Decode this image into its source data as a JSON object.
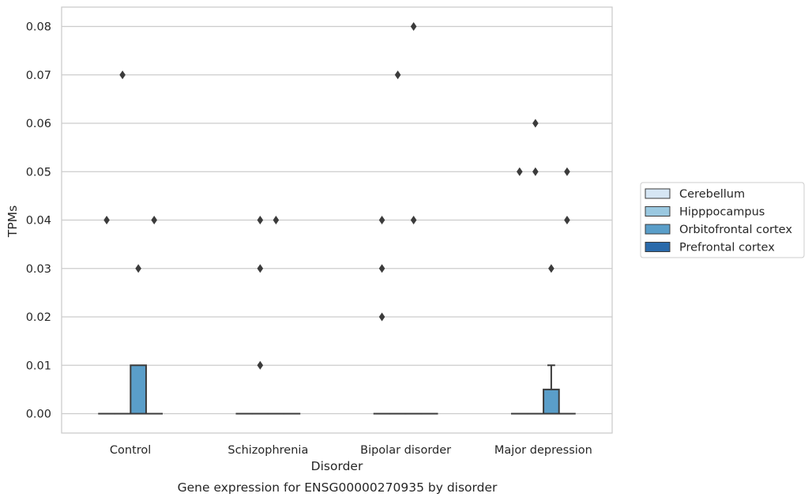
{
  "chart_data": {
    "type": "box",
    "xlabel": "Disorder",
    "ylabel": "TPMs",
    "caption": "Gene expression for ENSG00000270935 by disorder",
    "categories": [
      "Control",
      "Schizophrenia",
      "Bipolar disorder",
      "Major depression"
    ],
    "y_ticks": [
      "0.00",
      "0.01",
      "0.02",
      "0.03",
      "0.04",
      "0.05",
      "0.06",
      "0.07",
      "0.08"
    ],
    "ylim": [
      -0.004,
      0.084
    ],
    "grid": true,
    "legend_position": "right",
    "series": [
      {
        "name": "Cerebellum",
        "color": "#d6e6f4",
        "boxes": [
          {
            "q1": 0,
            "median": 0,
            "q3": 0,
            "whisker_low": 0,
            "whisker_high": 0,
            "outliers": [
              0.04
            ]
          },
          {
            "q1": 0,
            "median": 0,
            "q3": 0,
            "whisker_low": 0,
            "whisker_high": 0,
            "outliers": []
          },
          {
            "q1": 0,
            "median": 0,
            "q3": 0,
            "whisker_low": 0,
            "whisker_high": 0,
            "outliers": [
              0.04,
              0.03,
              0.02
            ]
          },
          {
            "q1": 0,
            "median": 0,
            "q3": 0,
            "whisker_low": 0,
            "whisker_high": 0,
            "outliers": [
              0.05
            ]
          }
        ]
      },
      {
        "name": "Hipppocampus",
        "color": "#9ac8e0",
        "boxes": [
          {
            "q1": 0,
            "median": 0,
            "q3": 0,
            "whisker_low": 0,
            "whisker_high": 0,
            "outliers": [
              0.07
            ]
          },
          {
            "q1": 0,
            "median": 0,
            "q3": 0,
            "whisker_low": 0,
            "whisker_high": 0,
            "outliers": [
              0.04,
              0.03,
              0.01
            ]
          },
          {
            "q1": 0,
            "median": 0,
            "q3": 0,
            "whisker_low": 0,
            "whisker_high": 0,
            "outliers": [
              0.07
            ]
          },
          {
            "q1": 0,
            "median": 0,
            "q3": 0,
            "whisker_low": 0,
            "whisker_high": 0,
            "outliers": [
              0.06,
              0.05
            ]
          }
        ]
      },
      {
        "name": "Orbitofrontal cortex",
        "color": "#5a9ec9",
        "boxes": [
          {
            "q1": 0,
            "median": 0,
            "q3": 0.01,
            "whisker_low": 0,
            "whisker_high": 0.01,
            "outliers": [
              0.03
            ]
          },
          {
            "q1": 0,
            "median": 0,
            "q3": 0,
            "whisker_low": 0,
            "whisker_high": 0,
            "outliers": [
              0.04
            ]
          },
          {
            "q1": 0,
            "median": 0,
            "q3": 0,
            "whisker_low": 0,
            "whisker_high": 0,
            "outliers": [
              0.08,
              0.04
            ]
          },
          {
            "q1": 0,
            "median": 0,
            "q3": 0.005,
            "whisker_low": 0,
            "whisker_high": 0.01,
            "outliers": [
              0.03
            ]
          }
        ]
      },
      {
        "name": "Prefrontal cortex",
        "color": "#2a6aaa",
        "boxes": [
          {
            "q1": 0,
            "median": 0,
            "q3": 0,
            "whisker_low": 0,
            "whisker_high": 0,
            "outliers": [
              0.04
            ]
          },
          {
            "q1": 0,
            "median": 0,
            "q3": 0,
            "whisker_low": 0,
            "whisker_high": 0,
            "outliers": []
          },
          {
            "q1": 0,
            "median": 0,
            "q3": 0,
            "whisker_low": 0,
            "whisker_high": 0,
            "outliers": []
          },
          {
            "q1": 0,
            "median": 0,
            "q3": 0,
            "whisker_low": 0,
            "whisker_high": 0,
            "outliers": [
              0.05,
              0.04
            ]
          }
        ]
      }
    ]
  }
}
